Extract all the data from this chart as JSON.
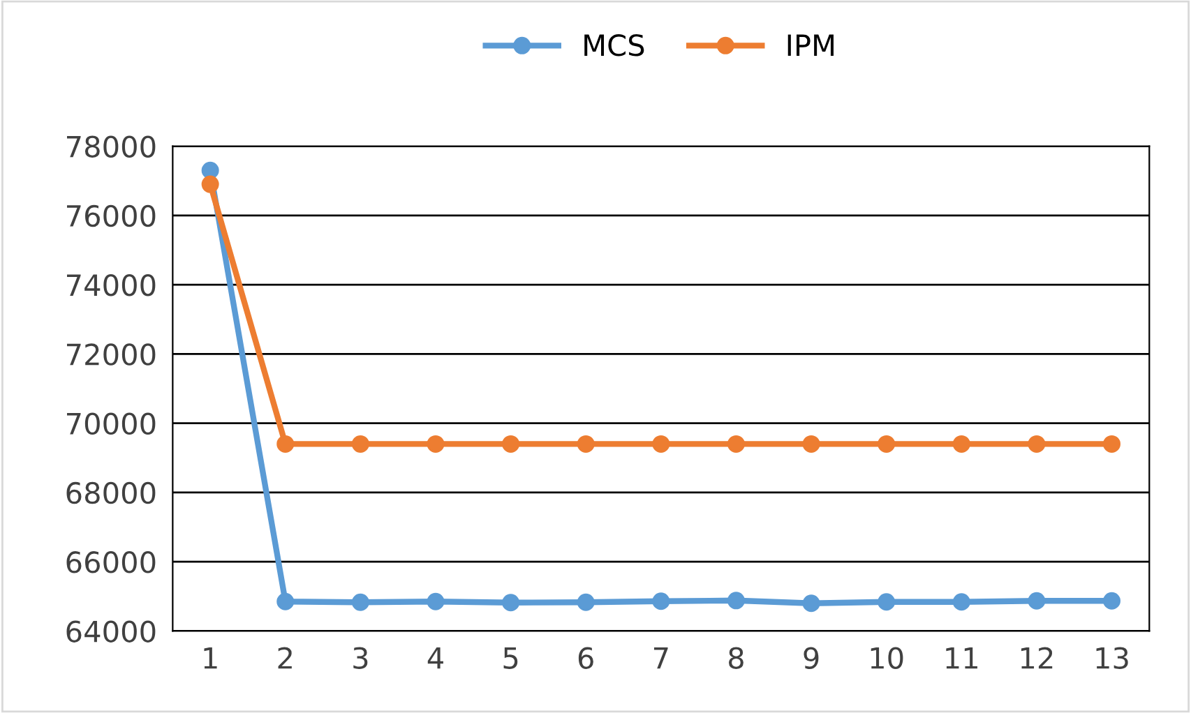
{
  "chart_data": {
    "type": "line",
    "categories": [
      "1",
      "2",
      "3",
      "4",
      "5",
      "6",
      "7",
      "8",
      "9",
      "10",
      "11",
      "12",
      "13"
    ],
    "series": [
      {
        "name": "MCS",
        "color": "#5b9bd5",
        "values": [
          77300,
          64850,
          64830,
          64850,
          64820,
          64830,
          64860,
          64880,
          64800,
          64840,
          64840,
          64870,
          64870
        ]
      },
      {
        "name": "IPM",
        "color": "#ed7d31",
        "values": [
          76900,
          69400,
          69400,
          69400,
          69400,
          69400,
          69400,
          69400,
          69400,
          69400,
          69400,
          69400,
          69400
        ]
      }
    ],
    "ylim": [
      64000,
      78000
    ],
    "yticks": [
      64000,
      66000,
      68000,
      70000,
      72000,
      74000,
      76000,
      78000
    ],
    "grid": "y",
    "legend": "top",
    "marker": "circle",
    "line_style": "solid"
  }
}
